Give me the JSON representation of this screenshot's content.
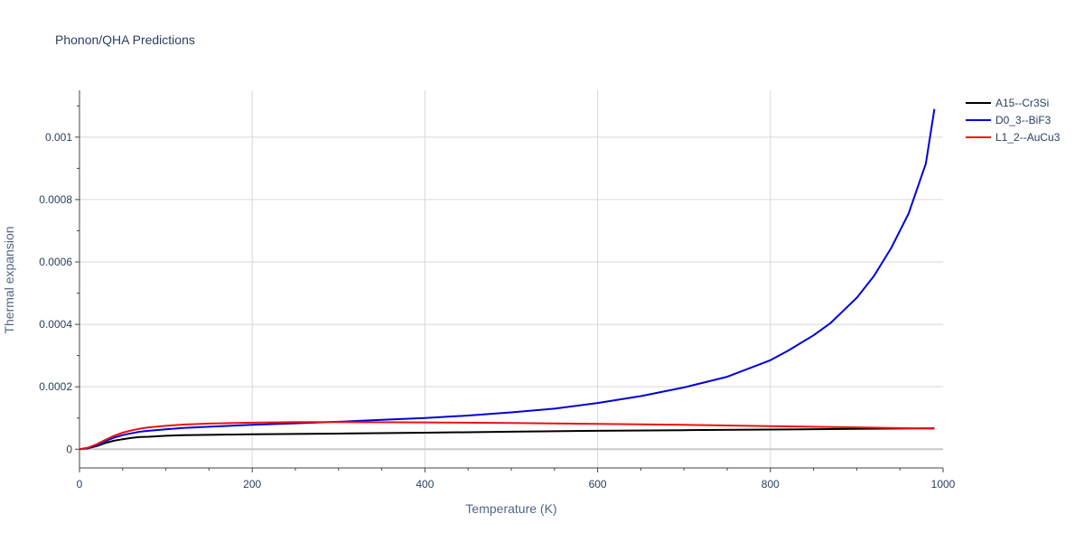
{
  "chart_data": {
    "type": "line",
    "title": "Phonon/QHA Predictions",
    "xlabel": "Temperature (K)",
    "ylabel": "Thermal expansion",
    "xlim": [
      0,
      1000
    ],
    "ylim": [
      -6e-05,
      0.00115
    ],
    "x_ticks": [
      0,
      200,
      400,
      600,
      800,
      1000
    ],
    "x_tick_labels": [
      "0",
      "200",
      "400",
      "600",
      "800",
      "1000"
    ],
    "y_ticks": [
      0,
      0.0002,
      0.0004,
      0.0006,
      0.0008,
      0.001
    ],
    "y_tick_labels": [
      "0",
      "0.0002",
      "0.0004",
      "0.0006",
      "0.0008",
      "0.001"
    ],
    "grid": true,
    "legend_position": "top-right",
    "series": [
      {
        "name": "A15--Cr3Si",
        "color": "#000000",
        "x": [
          0,
          10,
          20,
          30,
          40,
          50,
          60,
          70,
          80,
          100,
          120,
          150,
          200,
          300,
          400,
          500,
          600,
          700,
          800,
          900,
          990
        ],
        "y": [
          0,
          3e-06,
          1e-05,
          2e-05,
          2.7e-05,
          3.2e-05,
          3.6e-05,
          3.9e-05,
          4e-05,
          4.3e-05,
          4.5e-05,
          4.6e-05,
          4.8e-05,
          5e-05,
          5.3e-05,
          5.6e-05,
          5.9e-05,
          6.1e-05,
          6.3e-05,
          6.5e-05,
          6.7e-05
        ]
      },
      {
        "name": "D0_3--BiF3",
        "color": "#0000dd",
        "x": [
          0,
          10,
          20,
          30,
          40,
          50,
          60,
          70,
          80,
          100,
          120,
          150,
          200,
          250,
          300,
          350,
          400,
          450,
          500,
          550,
          600,
          650,
          700,
          750,
          800,
          820,
          850,
          870,
          900,
          920,
          940,
          960,
          980,
          990
        ],
        "y": [
          0,
          4e-06,
          1.3e-05,
          2.6e-05,
          3.7e-05,
          4.5e-05,
          5.1e-05,
          5.6e-05,
          5.9e-05,
          6.4e-05,
          6.8e-05,
          7.2e-05,
          7.8e-05,
          8.3e-05,
          8.8e-05,
          9.4e-05,
          0.0001,
          0.000108,
          0.000118,
          0.00013,
          0.000148,
          0.00017,
          0.000198,
          0.000232,
          0.000285,
          0.000315,
          0.000365,
          0.000405,
          0.000485,
          0.000555,
          0.000645,
          0.000755,
          0.000915,
          0.00109
        ]
      },
      {
        "name": "L1_2--AuCu3",
        "color": "#ee1111",
        "x": [
          0,
          10,
          20,
          30,
          40,
          50,
          60,
          70,
          80,
          100,
          120,
          150,
          200,
          250,
          300,
          400,
          500,
          600,
          700,
          800,
          900,
          990
        ],
        "y": [
          0,
          5e-06,
          1.6e-05,
          3e-05,
          4.3e-05,
          5.3e-05,
          6e-05,
          6.6e-05,
          7e-05,
          7.5e-05,
          7.9e-05,
          8.2e-05,
          8.5e-05,
          8.7e-05,
          8.7e-05,
          8.6e-05,
          8.4e-05,
          8.1e-05,
          7.8e-05,
          7.4e-05,
          7e-05,
          6.6e-05
        ]
      }
    ]
  }
}
